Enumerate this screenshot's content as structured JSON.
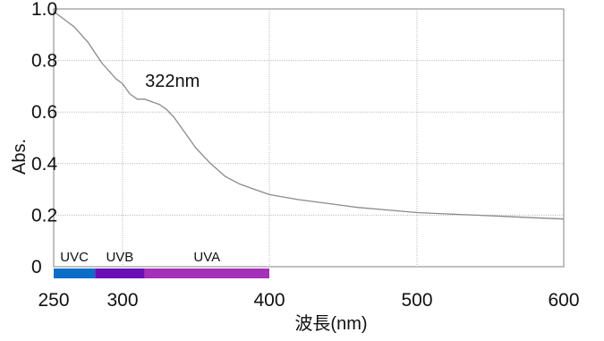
{
  "chart_data": {
    "type": "line",
    "title": "",
    "xlabel": "波長(nm)",
    "ylabel": "Abs.",
    "xlim": [
      250,
      600
    ],
    "ylim": [
      0,
      1.0
    ],
    "x_ticks": [
      250,
      300,
      400,
      500,
      600
    ],
    "x_tick_labels": [
      "250",
      "300",
      "400",
      "500",
      "600"
    ],
    "y_ticks": [
      0,
      0.2,
      0.4,
      0.6,
      0.8,
      1.0
    ],
    "y_tick_labels": [
      "0",
      "0.2",
      "0.4",
      "0.6",
      "0.8",
      "1.0"
    ],
    "grid": true,
    "series": [
      {
        "x": [
          250,
          255,
          260,
          265,
          270,
          275,
          280,
          285,
          290,
          295,
          300,
          305,
          310,
          315,
          320,
          325,
          330,
          335,
          340,
          345,
          350,
          360,
          370,
          380,
          390,
          400,
          420,
          440,
          460,
          480,
          500,
          520,
          540,
          560,
          580,
          600
        ],
        "y": [
          0.99,
          0.97,
          0.95,
          0.93,
          0.9,
          0.87,
          0.83,
          0.79,
          0.76,
          0.73,
          0.71,
          0.67,
          0.65,
          0.65,
          0.64,
          0.63,
          0.61,
          0.58,
          0.54,
          0.5,
          0.46,
          0.4,
          0.35,
          0.32,
          0.3,
          0.28,
          0.26,
          0.245,
          0.23,
          0.22,
          0.21,
          0.205,
          0.2,
          0.195,
          0.19,
          0.185
        ],
        "color": "#8a8a8a"
      }
    ],
    "annotations": [
      {
        "text": "322nm",
        "x": 322,
        "y": 0.65
      }
    ],
    "bands": [
      {
        "label": "UVC",
        "start": 250,
        "end": 280,
        "color": "#0a6ec7"
      },
      {
        "label": "UVB",
        "start": 280,
        "end": 315,
        "color": "#6a0fb7"
      },
      {
        "label": "UVA",
        "start": 315,
        "end": 400,
        "color": "#a42fb8"
      }
    ]
  }
}
